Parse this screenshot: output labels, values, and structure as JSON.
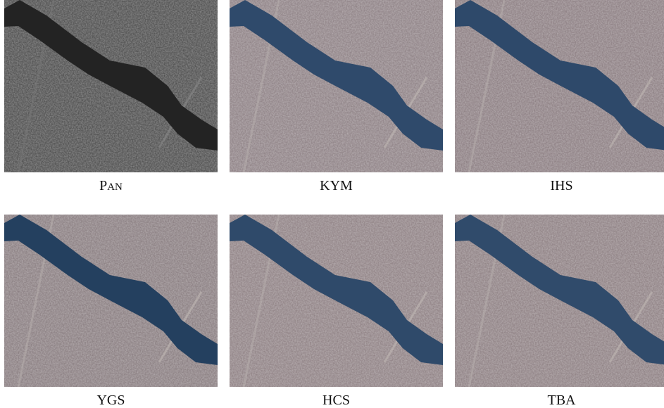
{
  "panels": [
    {
      "caption": "PAN"
    },
    {
      "caption": "KYM"
    },
    {
      "caption": "IHS"
    },
    {
      "caption": "YGS"
    },
    {
      "caption": "HCS"
    },
    {
      "caption": "TBA"
    }
  ]
}
